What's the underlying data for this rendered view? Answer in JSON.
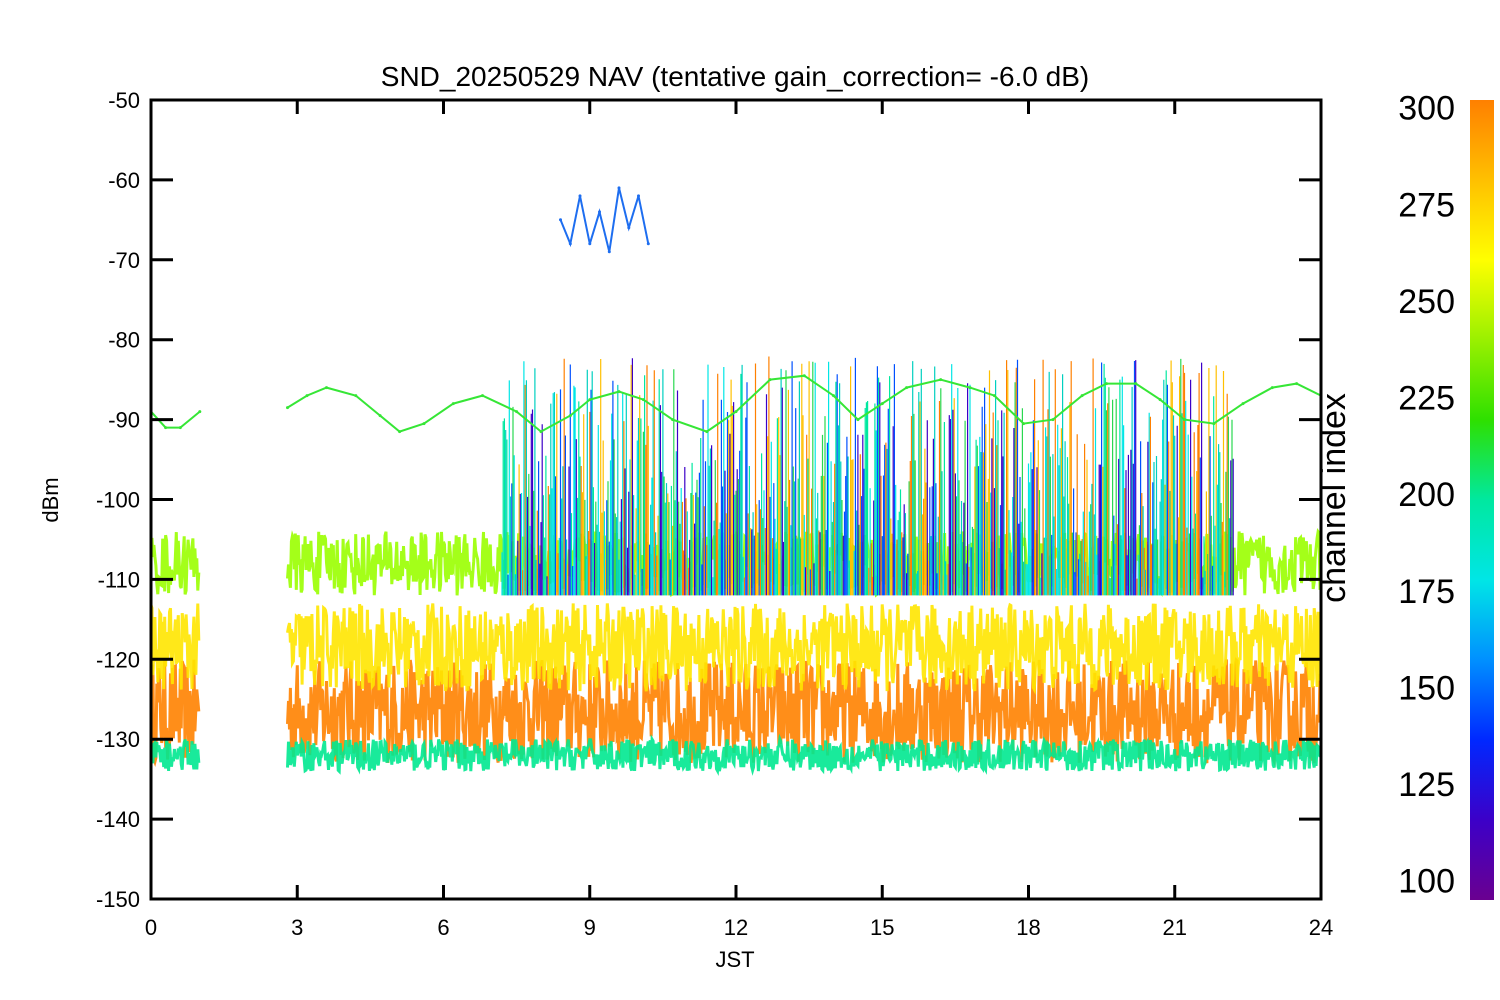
{
  "chart_data": {
    "type": "line",
    "title": "SND_20250529 NAV (tentative gain_correction= -6.0 dB)",
    "xlabel": "JST",
    "ylabel": "dBm",
    "xlim": [
      0,
      24
    ],
    "ylim": [
      -150,
      -50
    ],
    "x_ticks": [
      "0",
      "3",
      "6",
      "9",
      "12",
      "15",
      "18",
      "21",
      "24"
    ],
    "y_ticks": [
      "-50",
      "-60",
      "-70",
      "-80",
      "-90",
      "-100",
      "-110",
      "-120",
      "-130",
      "-140",
      "-150"
    ],
    "data_gap": [
      1.0,
      2.8
    ],
    "bands": [
      {
        "channel": 300,
        "color": "#ff8200",
        "low": -133,
        "high": -120
      },
      {
        "channel": 275,
        "color": "#ffe600",
        "low": -124,
        "high": -113
      },
      {
        "channel": 250,
        "color": "#9aff00",
        "low": -112,
        "high": -104
      },
      {
        "channel": 200,
        "color": "#00e890",
        "low": -134,
        "high": -130
      }
    ],
    "series": [
      {
        "channel": 240,
        "color": "#36e636",
        "x": [
          0,
          0.3,
          0.6,
          1.0,
          2.8,
          3.2,
          3.6,
          4.2,
          4.7,
          5.1,
          5.6,
          6.2,
          6.8,
          7.5,
          8.0,
          8.6,
          9.0,
          9.6,
          10.1,
          10.7,
          11.4,
          12.0,
          12.7,
          13.4,
          14.0,
          14.5,
          15.0,
          15.5,
          16.2,
          16.8,
          17.3,
          17.9,
          18.5,
          19.1,
          19.6,
          20.2,
          20.7,
          21.2,
          21.8,
          22.4,
          23.0,
          23.5,
          24.0
        ],
        "values": [
          -89,
          -91,
          -91,
          -89,
          -88.5,
          -87,
          -86,
          -87,
          -89.5,
          -91.5,
          -90.5,
          -88,
          -87,
          -89,
          -91.5,
          -89.5,
          -87.5,
          -86.5,
          -87.5,
          -90,
          -91.5,
          -89,
          -85,
          -84.5,
          -87,
          -90,
          -88,
          -86,
          -85,
          -86,
          -87,
          -90.5,
          -90,
          -87,
          -85.5,
          -85.5,
          -87.5,
          -90,
          -90.5,
          -88,
          -86,
          -85.5,
          -87
        ]
      },
      {
        "channel": 150,
        "color": "#1e6ef0",
        "x": [
          8.4,
          8.6,
          8.8,
          9.0,
          9.2,
          9.4,
          9.6,
          9.8,
          10.0,
          10.2
        ],
        "values": [
          -65,
          -68,
          -62,
          -68,
          -64,
          -69,
          -61,
          -66,
          -62,
          -68
        ]
      }
    ],
    "colorbar": {
      "label": "channel index",
      "range": [
        95,
        302
      ],
      "ticks": [
        "300",
        "275",
        "250",
        "225",
        "200",
        "175",
        "150",
        "125",
        "100"
      ],
      "colormap": [
        "#6a0090",
        "#3c00c8",
        "#0028ff",
        "#0090ff",
        "#00e6e6",
        "#00e8a0",
        "#2ee000",
        "#9af000",
        "#ffff00",
        "#ffc000",
        "#ff8000"
      ]
    }
  }
}
